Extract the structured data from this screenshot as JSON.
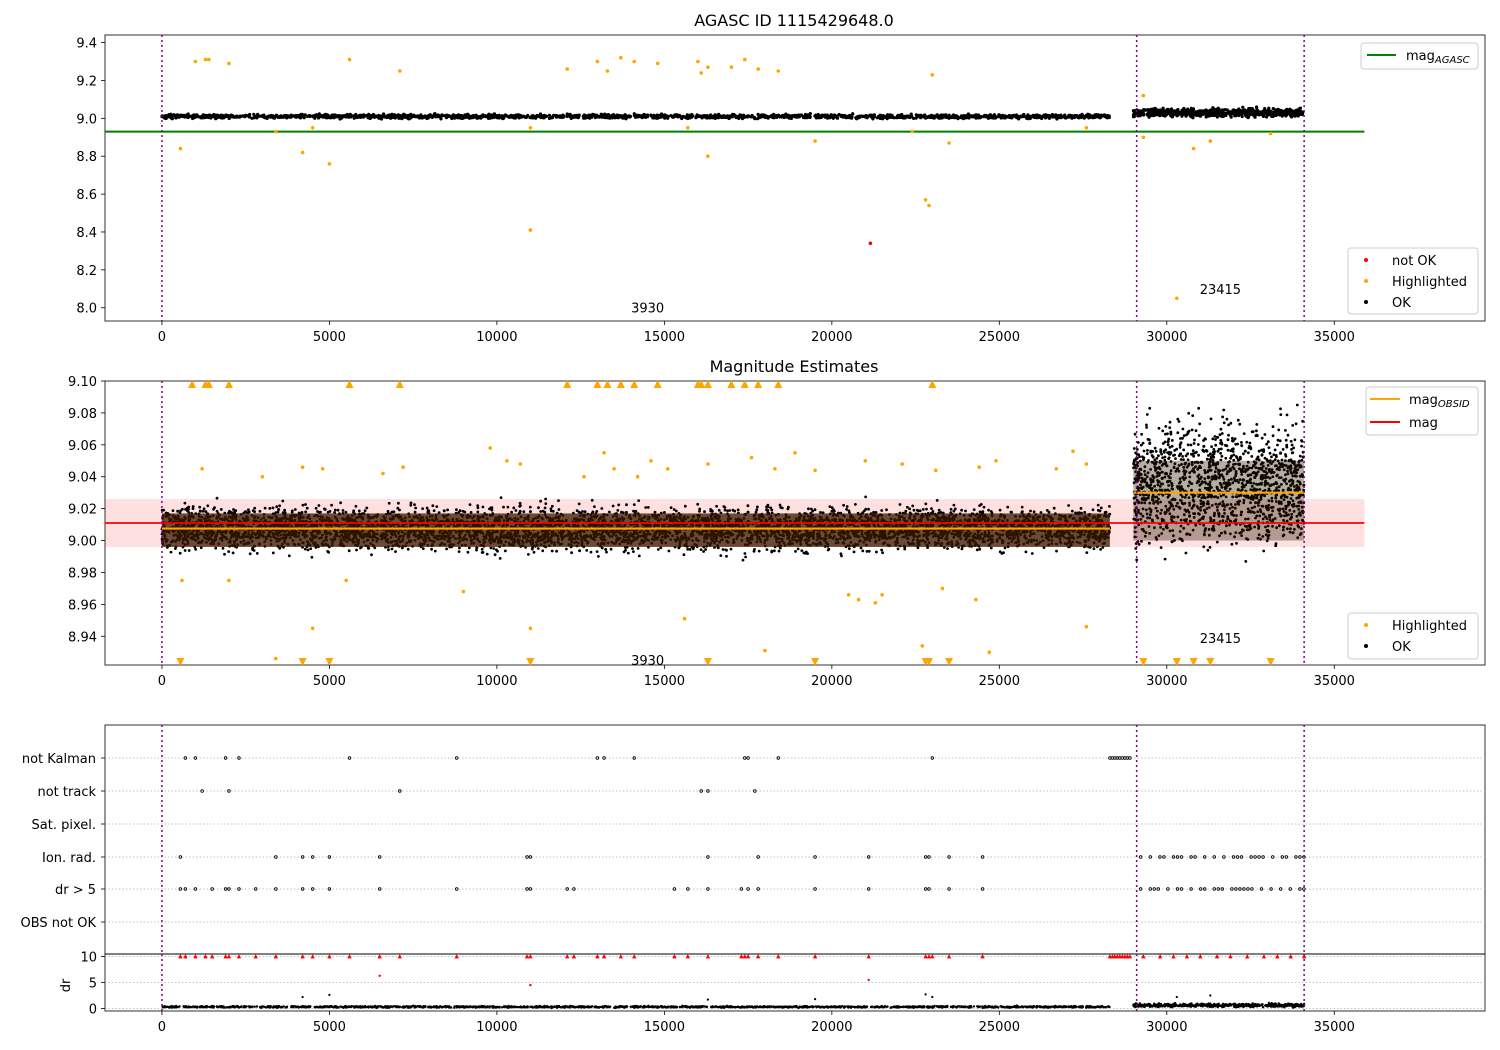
{
  "figure": {
    "title_top": "AGASC ID 1115429648.0",
    "title_mid": "Magnitude Estimates"
  },
  "chart_data": [
    {
      "type": "scatter",
      "title": "AGASC ID 1115429648.0",
      "xlim": [
        -1700,
        39500
      ],
      "ylim": [
        7.93,
        9.44
      ],
      "xticks": [
        0,
        5000,
        10000,
        15000,
        20000,
        25000,
        30000,
        35000
      ],
      "yticks": [
        8.0,
        8.2,
        8.4,
        8.6,
        8.8,
        9.0,
        9.2,
        9.4
      ],
      "grid": false,
      "legend_upper": {
        "position": "upper right",
        "entries": [
          {
            "label": "mag",
            "sub": "AGASC",
            "color": "#008000"
          }
        ]
      },
      "legend_lower": {
        "position": "lower right",
        "entries": [
          {
            "label": "not OK",
            "color": "#ff0000"
          },
          {
            "label": "Highlighted",
            "color": "#ffa500"
          },
          {
            "label": "OK",
            "color": "#000000"
          }
        ]
      },
      "vlines": [
        0,
        29100,
        34100
      ],
      "annotations": [
        {
          "text": "3930",
          "x": 14500,
          "y": 8.0
        },
        {
          "text": "23415",
          "x": 31600,
          "y": 8.1
        }
      ],
      "reference_lines": [
        {
          "name": "mag_AGASC",
          "y": 8.93,
          "x": [
            -1700,
            35900
          ],
          "color": "#008000"
        }
      ],
      "series": [
        {
          "name": "OK",
          "color": "#000000",
          "bands": [
            {
              "x": [
                0,
                28300
              ],
              "y": [
                8.99,
                9.03
              ]
            },
            {
              "x": [
                29000,
                34100
              ],
              "y": [
                8.99,
                9.07
              ]
            }
          ]
        },
        {
          "name": "not OK",
          "color": "#ff0000",
          "points": [
            [
              21150,
              8.34
            ]
          ]
        },
        {
          "name": "Highlighted",
          "color": "#ffa500",
          "points": [
            [
              550,
              8.84
            ],
            [
              1000,
              9.3
            ],
            [
              1300,
              9.31
            ],
            [
              1400,
              9.31
            ],
            [
              2000,
              9.29
            ],
            [
              3400,
              8.93
            ],
            [
              4200,
              8.82
            ],
            [
              4500,
              8.95
            ],
            [
              5000,
              8.76
            ],
            [
              5600,
              9.31
            ],
            [
              7100,
              9.25
            ],
            [
              11000,
              8.41
            ],
            [
              11000,
              8.95
            ],
            [
              12100,
              9.26
            ],
            [
              13000,
              9.3
            ],
            [
              13300,
              9.25
            ],
            [
              13700,
              9.32
            ],
            [
              14100,
              9.3
            ],
            [
              14800,
              9.29
            ],
            [
              15700,
              8.95
            ],
            [
              16000,
              9.3
            ],
            [
              16100,
              9.24
            ],
            [
              16300,
              9.27
            ],
            [
              16300,
              8.8
            ],
            [
              17000,
              9.27
            ],
            [
              17400,
              9.31
            ],
            [
              17800,
              9.26
            ],
            [
              18400,
              9.25
            ],
            [
              19500,
              8.88
            ],
            [
              22400,
              8.93
            ],
            [
              22800,
              8.57
            ],
            [
              22900,
              8.54
            ],
            [
              23000,
              9.23
            ],
            [
              23500,
              8.87
            ],
            [
              27600,
              8.95
            ],
            [
              29300,
              8.9
            ],
            [
              29300,
              9.12
            ],
            [
              30300,
              8.05
            ],
            [
              30800,
              8.84
            ],
            [
              31300,
              8.88
            ],
            [
              33100,
              8.92
            ]
          ]
        }
      ]
    },
    {
      "type": "scatter",
      "title": "Magnitude Estimates",
      "xlim": [
        -1700,
        39500
      ],
      "ylim": [
        8.922,
        9.1
      ],
      "xticks": [
        0,
        5000,
        10000,
        15000,
        20000,
        25000,
        30000,
        35000
      ],
      "yticks": [
        8.94,
        8.96,
        8.98,
        9.0,
        9.02,
        9.04,
        9.06,
        9.08,
        9.1
      ],
      "grid": false,
      "legend_upper": {
        "position": "upper right",
        "entries": [
          {
            "label": "mag",
            "sub": "OBSID",
            "color": "#ffa500"
          },
          {
            "label": "mag",
            "sub": "",
            "color": "#ff0000"
          }
        ]
      },
      "legend_lower": {
        "position": "lower right",
        "entries": [
          {
            "label": "Highlighted",
            "color": "#ffa500"
          },
          {
            "label": "OK",
            "color": "#000000"
          }
        ]
      },
      "vlines": [
        0,
        29100,
        34100
      ],
      "annotations": [
        {
          "text": "3930",
          "x": 14500,
          "y": 8.925
        },
        {
          "text": "23415",
          "x": 31600,
          "y": 8.939
        }
      ],
      "reference_lines": [
        {
          "name": "mag",
          "y": 9.011,
          "x": [
            -1700,
            35900
          ],
          "color": "#ff0000",
          "band": [
            8.996,
            9.026
          ]
        },
        {
          "name": "mag_OBSID",
          "y": 9.0075,
          "x": [
            0,
            28300
          ],
          "color": "#ffa500"
        },
        {
          "name": "mag_OBSID",
          "y": 9.03,
          "x": [
            29000,
            34100
          ],
          "color": "#ffa500"
        }
      ],
      "series": [
        {
          "name": "OK",
          "color": "#000000",
          "bands": [
            {
              "x": [
                0,
                28300
              ],
              "y": [
                8.985,
                9.03
              ]
            },
            {
              "x": [
                29000,
                34100
              ],
              "y": [
                8.975,
                9.095
              ]
            }
          ]
        },
        {
          "name": "Highlighted",
          "color": "#ffa500",
          "points": [
            [
              600,
              8.975
            ],
            [
              2000,
              8.975
            ],
            [
              3400,
              8.926
            ],
            [
              4500,
              8.945
            ],
            [
              5500,
              8.975
            ],
            [
              9000,
              8.968
            ],
            [
              11000,
              8.945
            ],
            [
              15600,
              8.951
            ],
            [
              18000,
              8.931
            ],
            [
              20500,
              8.966
            ],
            [
              20800,
              8.963
            ],
            [
              21300,
              8.961
            ],
            [
              21500,
              8.966
            ],
            [
              22700,
              8.934
            ],
            [
              23300,
              8.97
            ],
            [
              24300,
              8.963
            ],
            [
              24700,
              8.93
            ],
            [
              27600,
              8.946
            ],
            [
              1200,
              9.045
            ],
            [
              3000,
              9.04
            ],
            [
              4200,
              9.046
            ],
            [
              4800,
              9.045
            ],
            [
              6600,
              9.042
            ],
            [
              7200,
              9.046
            ],
            [
              9800,
              9.058
            ],
            [
              10300,
              9.05
            ],
            [
              10700,
              9.048
            ],
            [
              12600,
              9.04
            ],
            [
              13200,
              9.055
            ],
            [
              13500,
              9.045
            ],
            [
              14200,
              9.04
            ],
            [
              14600,
              9.05
            ],
            [
              15100,
              9.045
            ],
            [
              16300,
              9.048
            ],
            [
              17600,
              9.052
            ],
            [
              18300,
              9.045
            ],
            [
              18900,
              9.055
            ],
            [
              19500,
              9.044
            ],
            [
              21000,
              9.05
            ],
            [
              22100,
              9.048
            ],
            [
              23100,
              9.044
            ],
            [
              24400,
              9.046
            ],
            [
              24900,
              9.05
            ],
            [
              26700,
              9.045
            ],
            [
              27200,
              9.056
            ],
            [
              27600,
              9.048
            ]
          ]
        },
        {
          "name": "Highlighted (upper clipped)",
          "color": "#ffa500",
          "marker": "triangle-up",
          "x": [
            900,
            1300,
            1400,
            2000,
            5600,
            7100,
            12100,
            13000,
            13300,
            13700,
            14100,
            14800,
            16000,
            16100,
            16300,
            17000,
            17400,
            17800,
            18400,
            23000
          ]
        },
        {
          "name": "Highlighted (lower clipped)",
          "color": "#ffa500",
          "marker": "triangle-down",
          "x": [
            550,
            4200,
            5000,
            11000,
            16300,
            19500,
            22800,
            22900,
            23500,
            29300,
            30300,
            30800,
            31300,
            33100
          ]
        }
      ]
    },
    {
      "type": "scatter",
      "xlim": [
        -1700,
        39500
      ],
      "categories": [
        "not Kalman",
        "not track",
        "Sat. pixel.",
        "Ion. rad.",
        "dr > 5",
        "OBS not OK"
      ],
      "vlines": [
        0,
        29100,
        34100
      ],
      "flag_events": {
        "not Kalman": [
          700,
          1000,
          1900,
          2300,
          5600,
          8800,
          13000,
          13200,
          14100,
          17400,
          17500,
          18400,
          23000
        ],
        "not track": [
          1200,
          2000,
          7100,
          16100,
          16300,
          17700
        ],
        "Sat. pixel.": [],
        "Ion. rad.": [
          550,
          3400,
          4200,
          4500,
          5000,
          6500,
          10900,
          11000,
          16300,
          17800,
          19500,
          21100,
          22800,
          22900,
          23500,
          24500
        ],
        "dr > 5": [
          550,
          700,
          1000,
          1500,
          1900,
          2000,
          2300,
          2800,
          3400,
          4200,
          4500,
          5000,
          6500,
          8800,
          10900,
          11000,
          12100,
          12300,
          15300,
          15700,
          16300,
          17300,
          17500,
          17800,
          19500,
          21100,
          22800,
          22900,
          23500,
          24500
        ],
        "OBS not OK": []
      },
      "flag_dense": {
        "not Kalman": [
          28300,
          28900
        ],
        "Ion. rad.": [
          29100,
          34100
        ],
        "dr > 5": [
          29100,
          34100
        ]
      }
    },
    {
      "type": "scatter",
      "xlim": [
        -1700,
        39500
      ],
      "ylim": [
        -0.5,
        10.5
      ],
      "ylabel": "dr",
      "yticks": [
        0,
        5,
        10
      ],
      "xticks": [
        0,
        5000,
        10000,
        15000,
        20000,
        25000,
        30000,
        35000
      ],
      "vlines": [
        0,
        29100,
        34100
      ],
      "series": [
        {
          "name": "dr",
          "color": "#000000",
          "bands": [
            {
              "x": [
                0,
                28300
              ],
              "y": [
                0,
                0.6
              ]
            },
            {
              "x": [
                29000,
                34100
              ],
              "y": [
                0,
                1.2
              ]
            }
          ],
          "points": [
            [
              4200,
              2.2
            ],
            [
              5000,
              2.6
            ],
            [
              16300,
              1.7
            ],
            [
              19500,
              1.8
            ],
            [
              22800,
              2.7
            ],
            [
              23000,
              2.2
            ],
            [
              30300,
              2.2
            ],
            [
              31300,
              2.5
            ]
          ]
        },
        {
          "name": "dr > 10",
          "color": "#ff0000",
          "marker": "triangle-up",
          "x": [
            550,
            700,
            1000,
            1300,
            1500,
            1900,
            2000,
            2300,
            2800,
            3400,
            4200,
            4500,
            5000,
            5600,
            6500,
            7100,
            8800,
            10900,
            11000,
            12100,
            12300,
            13000,
            13200,
            13700,
            14100,
            15300,
            15700,
            16300,
            17300,
            17400,
            17500,
            17800,
            18400,
            19500,
            21100,
            22800,
            22900,
            23000,
            23500,
            24500,
            29300,
            29800,
            30200,
            30600,
            31000,
            31500,
            31900,
            32400,
            32900,
            33300,
            33700,
            34100
          ],
          "dense": [
            28300,
            28900
          ]
        },
        {
          "name": "dr (red)",
          "color": "#ff0000",
          "points": [
            [
              6500,
              6.3
            ],
            [
              11000,
              4.5
            ],
            [
              21100,
              5.5
            ]
          ]
        }
      ]
    }
  ]
}
